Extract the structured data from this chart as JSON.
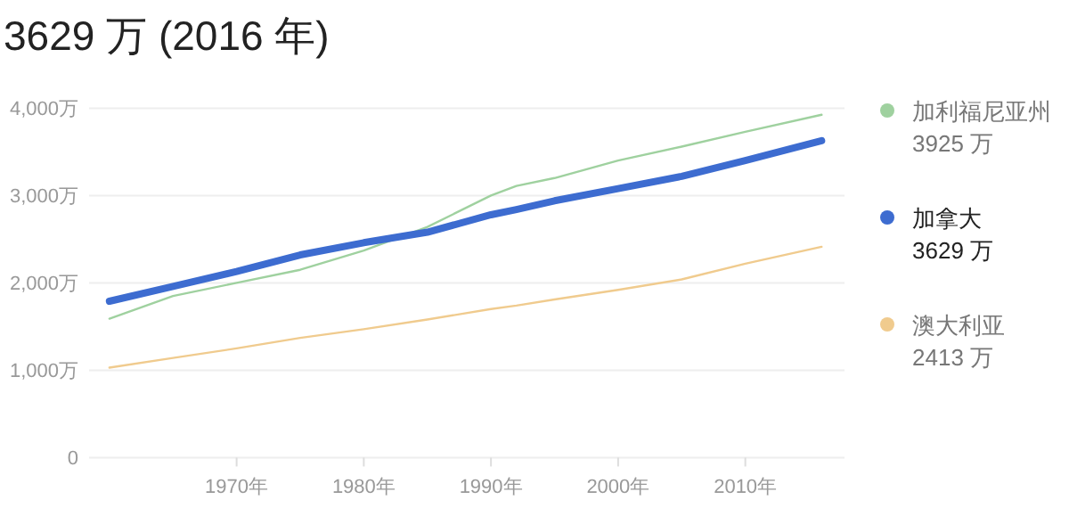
{
  "chart_data": {
    "type": "line",
    "title": "3629 万 (2016 年)",
    "x": [
      1960,
      1965,
      1970,
      1975,
      1980,
      1985,
      1990,
      1992,
      1995,
      2000,
      2005,
      2010,
      2016
    ],
    "series": [
      {
        "name": "加利福尼亚州",
        "color": "#9fd19f",
        "values": [
          1590,
          1850,
          2000,
          2150,
          2370,
          2640,
          3000,
          3110,
          3200,
          3400,
          3560,
          3730,
          3925
        ]
      },
      {
        "name": "加拿大",
        "color": "#3d6cd0",
        "values": [
          1790,
          1960,
          2130,
          2320,
          2460,
          2580,
          2780,
          2840,
          2940,
          3080,
          3220,
          3400,
          3629
        ]
      },
      {
        "name": "澳大利亚",
        "color": "#f0cb8e",
        "values": [
          1030,
          1140,
          1250,
          1370,
          1470,
          1580,
          1700,
          1740,
          1810,
          1920,
          2040,
          2220,
          2413
        ]
      }
    ],
    "annotations": [
      "3925 万",
      "3629 万",
      "2413 万"
    ],
    "xlim": [
      1958.4,
      2017.8
    ],
    "ylim": [
      0,
      4000
    ],
    "xticks": [
      {
        "value": 1970,
        "label": "1970年"
      },
      {
        "value": 1980,
        "label": "1980年"
      },
      {
        "value": 1990,
        "label": "1990年"
      },
      {
        "value": 2000,
        "label": "2000年"
      },
      {
        "value": 2010,
        "label": "2010年"
      }
    ],
    "yticks": [
      0,
      {
        "value": 1000,
        "label": "1,000万"
      },
      {
        "value": 2000,
        "label": "2,000万"
      },
      {
        "value": 3000,
        "label": "3,000万"
      },
      {
        "value": 4000,
        "label": "4,000万"
      }
    ],
    "grid": "y",
    "legend": "right",
    "line_style": "solid"
  }
}
